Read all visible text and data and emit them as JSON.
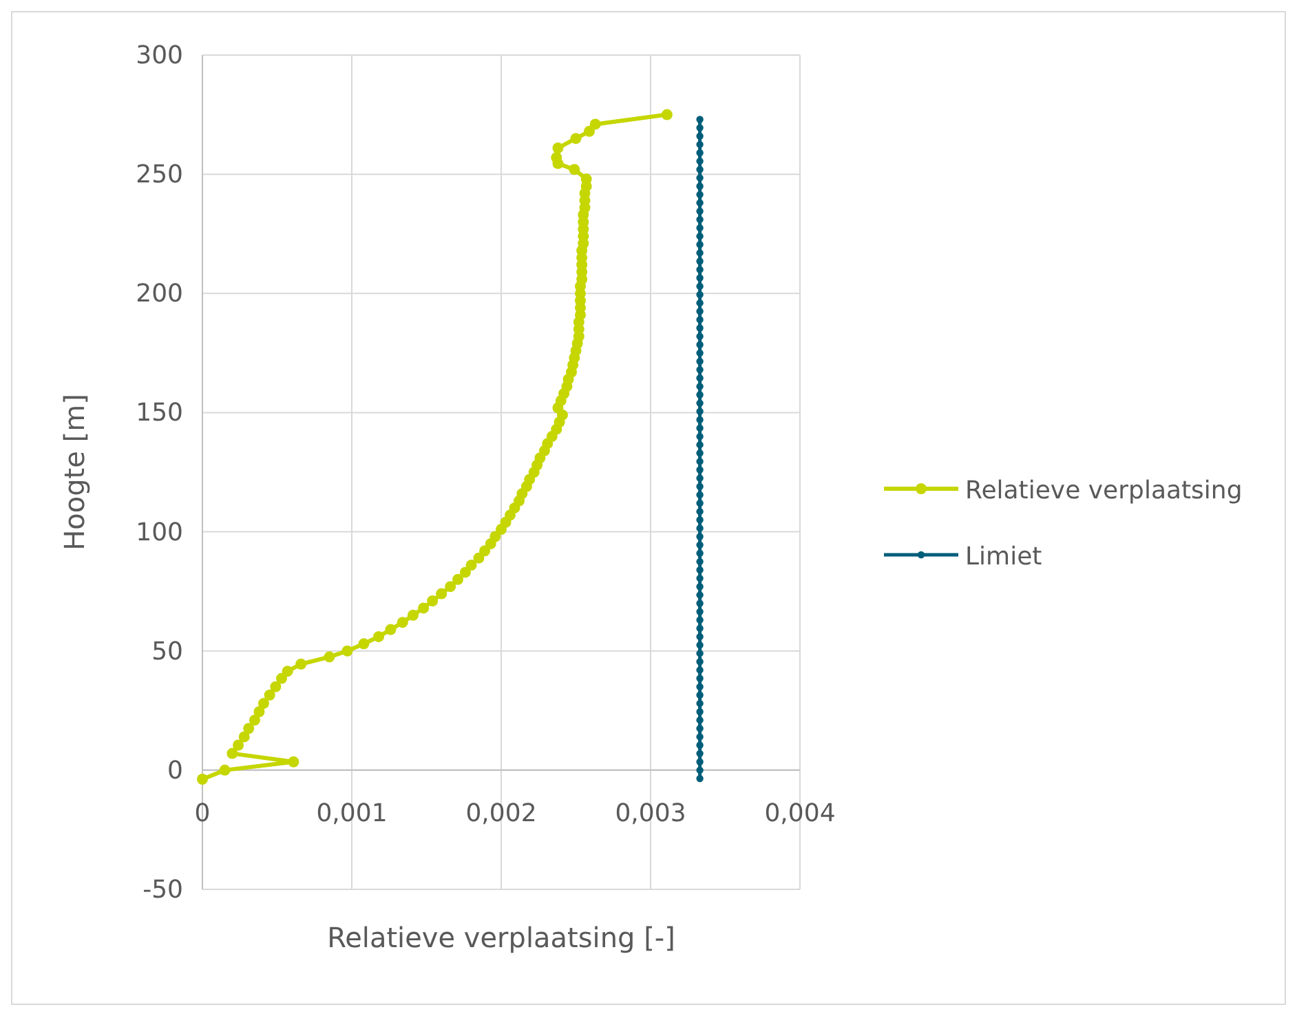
{
  "chart_data": {
    "type": "line",
    "xlabel": "Relatieve verplaatsing [-]",
    "ylabel": "Hoogte [m]",
    "xlim": [
      0,
      0.004
    ],
    "xticks": [
      {
        "value": 0,
        "label": "0"
      },
      {
        "value": 0.001,
        "label": "0,001"
      },
      {
        "value": 0.002,
        "label": "0,002"
      },
      {
        "value": 0.003,
        "label": "0,003"
      },
      {
        "value": 0.004,
        "label": "0,004"
      }
    ],
    "ylim": [
      -50,
      300
    ],
    "yticks": [
      -50,
      0,
      50,
      100,
      150,
      200,
      250,
      300
    ],
    "grid": true,
    "legend": "right",
    "marker": "circle",
    "line_style": "solid",
    "series": [
      {
        "name": "Relatieve verplaatsing",
        "color": "#c5d600",
        "x": [
          0,
          0.00015,
          0.00061,
          0.0002,
          0.00024,
          0.00028,
          0.00031,
          0.00035,
          0.00038,
          0.00041,
          0.00045,
          0.00049,
          0.00053,
          0.00057,
          0.00066,
          0.00085,
          0.00097,
          0.00108,
          0.00118,
          0.00126,
          0.00134,
          0.00141,
          0.00148,
          0.00154,
          0.0016,
          0.00166,
          0.00171,
          0.00176,
          0.0018,
          0.00185,
          0.00189,
          0.00193,
          0.00196,
          0.002,
          0.00203,
          0.00206,
          0.00209,
          0.00212,
          0.00214,
          0.00217,
          0.00219,
          0.00222,
          0.00224,
          0.00226,
          0.00229,
          0.00231,
          0.00234,
          0.00237,
          0.00239,
          0.00241,
          0.00238,
          0.0024,
          0.00242,
          0.00244,
          0.00245,
          0.00247,
          0.00248,
          0.00249,
          0.0025,
          0.00251,
          0.00252,
          0.00252,
          0.00252,
          0.00253,
          0.00253,
          0.00253,
          0.00253,
          0.00253,
          0.00254,
          0.00254,
          0.00254,
          0.00254,
          0.00254,
          0.00255,
          0.00255,
          0.00255,
          0.00255,
          0.00255,
          0.00256,
          0.00256,
          0.00256,
          0.00257,
          0.00257,
          0.00249,
          0.00238,
          0.00237,
          0.00238,
          0.0025,
          0.00259,
          0.00263,
          0.00311
        ],
        "values": [
          -3.8,
          0,
          3.5,
          7,
          10.5,
          14,
          17.5,
          21,
          24.5,
          28,
          31.5,
          35,
          38.5,
          41.5,
          44.5,
          47.5,
          50,
          53,
          56,
          59,
          62,
          65,
          68,
          71,
          74,
          77,
          80,
          83,
          86,
          89,
          92,
          95,
          98,
          101,
          104,
          107,
          110,
          113,
          116,
          119,
          122,
          125,
          128,
          131,
          134,
          137,
          140,
          143,
          146,
          149,
          152,
          155,
          158,
          161,
          164,
          167,
          170,
          173,
          176,
          179,
          182,
          185,
          188,
          191,
          194,
          197,
          200,
          203,
          206,
          209,
          212,
          215,
          218,
          221,
          224,
          227,
          230,
          233,
          236,
          239,
          242,
          245,
          248,
          252,
          254.5,
          257,
          261,
          265,
          268,
          271,
          275
        ]
      },
      {
        "name": "Limiet",
        "color": "#005e7a",
        "x": [
          0.00333,
          0.00333,
          0.00333,
          0.00333,
          0.00333,
          0.00333,
          0.00333,
          0.00333,
          0.00333,
          0.00333,
          0.00333,
          0.00333,
          0.00333,
          0.00333,
          0.00333,
          0.00333,
          0.00333,
          0.00333,
          0.00333,
          0.00333,
          0.00333,
          0.00333,
          0.00333,
          0.00333,
          0.00333,
          0.00333,
          0.00333,
          0.00333,
          0.00333,
          0.00333,
          0.00333,
          0.00333,
          0.00333,
          0.00333,
          0.00333,
          0.00333,
          0.00333,
          0.00333,
          0.00333,
          0.00333,
          0.00333,
          0.00333,
          0.00333,
          0.00333,
          0.00333,
          0.00333,
          0.00333,
          0.00333,
          0.00333,
          0.00333,
          0.00333,
          0.00333,
          0.00333,
          0.00333,
          0.00333,
          0.00333,
          0.00333,
          0.00333,
          0.00333,
          0.00333,
          0.00333,
          0.00333,
          0.00333,
          0.00333,
          0.00333,
          0.00333,
          0.00333,
          0.00333,
          0.00333,
          0.00333,
          0.00333,
          0.00333,
          0.00333,
          0.00333,
          0.00333,
          0.00333,
          0.00333,
          0.00333,
          0.00333,
          0.00333
        ],
        "values": [
          -3.5,
          0,
          3.5,
          7,
          10.5,
          14,
          17.5,
          21,
          24.5,
          28,
          31.5,
          35,
          38.5,
          42,
          45.5,
          49,
          52.5,
          56,
          59.5,
          63,
          66.5,
          70,
          73.5,
          77,
          80.5,
          84,
          87.5,
          91,
          94.5,
          98,
          101.5,
          105,
          108.5,
          112,
          115.5,
          119,
          122.5,
          126,
          129.5,
          133,
          136.5,
          140,
          143.5,
          147,
          150.5,
          154,
          157.5,
          161,
          164.5,
          168,
          171.5,
          175,
          178.5,
          182,
          185.5,
          189,
          192.5,
          196,
          199.5,
          203,
          206.5,
          210,
          213.5,
          217,
          220.5,
          224,
          227.5,
          231,
          234.5,
          238,
          241.5,
          245,
          248.5,
          252,
          255.5,
          259,
          262.5,
          266,
          269.5,
          273
        ]
      }
    ]
  }
}
